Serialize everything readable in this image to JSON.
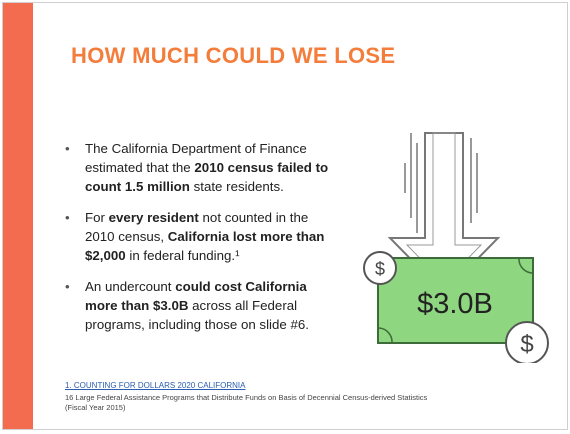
{
  "title": "HOW MUCH COULD WE LOSE",
  "bullets": [
    [
      {
        "text": "The California Department of Finance estimated that the ",
        "bold": false
      },
      {
        "text": "2010 census failed to count 1.5 million",
        "bold": true
      },
      {
        "text": " state residents.",
        "bold": false
      }
    ],
    [
      {
        "text": "For ",
        "bold": false
      },
      {
        "text": "every resident",
        "bold": true
      },
      {
        "text": " not counted in the 2010 census, ",
        "bold": false
      },
      {
        "text": "California lost more than $2,000",
        "bold": true
      },
      {
        "text": " in federal funding.¹",
        "bold": false
      }
    ],
    [
      {
        "text": "An undercount ",
        "bold": false
      },
      {
        "text": "could cost California more than $3.0B",
        "bold": true
      },
      {
        "text": " across all Federal programs, including those on slide #6.",
        "bold": false
      }
    ]
  ],
  "illustration": {
    "amount": "$3.0B",
    "coin_symbol": "$"
  },
  "footnote": {
    "link": "1. COUNTING FOR DOLLARS 2020 CALIFORNIA",
    "text": "16 Large Federal Assistance Programs that Distribute Funds on Basis of Decennial Census-derived Statistics (Fiscal Year 2015)"
  }
}
